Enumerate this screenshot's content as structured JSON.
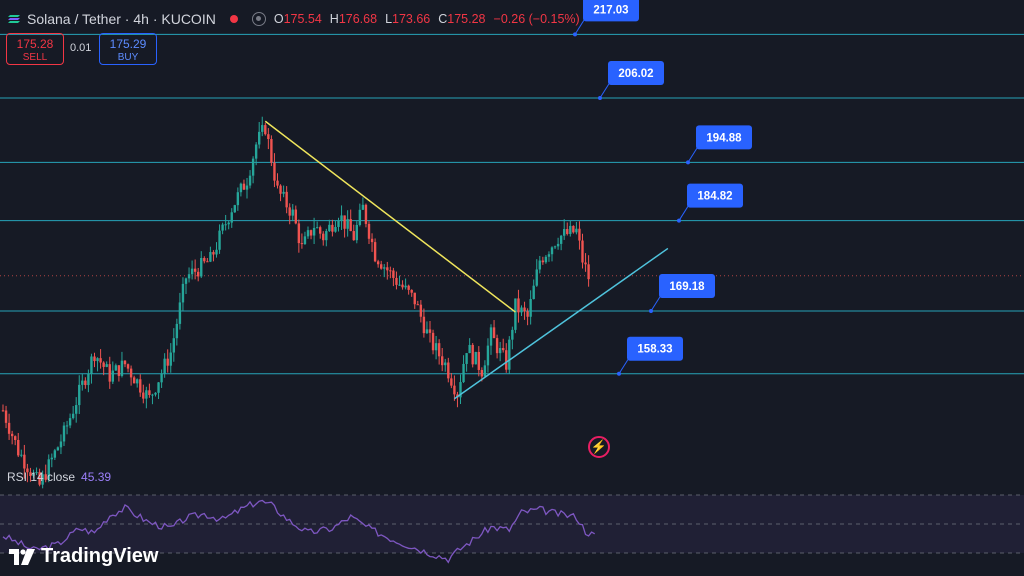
{
  "header": {
    "symbol": "Solana / Tether · 4h · KUCOIN",
    "ohlc": [
      {
        "key": "O",
        "value": "175.54"
      },
      {
        "key": "H",
        "value": "176.68"
      },
      {
        "key": "L",
        "value": "173.66"
      },
      {
        "key": "C",
        "value": "175.28"
      },
      {
        "key": "",
        "value": "−0.26 (−0.15%)"
      }
    ]
  },
  "trade": {
    "sell_price": "175.28",
    "sell_label": "SELL",
    "buy_price": "175.29",
    "buy_label": "BUY",
    "spread": "0.01"
  },
  "rsi": {
    "label": "RSI 14 close",
    "value": "45.39"
  },
  "brand": {
    "name": "TradingView"
  },
  "colors": {
    "up": "#26a69a",
    "down": "#ef5350",
    "hline": "#26a3b8",
    "trend_down": "#f0e65c",
    "trend_up": "#4fc3dc",
    "rsi": "#7e57c2",
    "label_bg": "#2962ff"
  },
  "chart_data": {
    "type": "candlestick",
    "series": [
      {
        "name": "SOL/USDT",
        "waypoints": [
          [
            0,
            152
          ],
          [
            5,
            145
          ],
          [
            12,
            139
          ],
          [
            20,
            148
          ],
          [
            30,
            162
          ],
          [
            35,
            158
          ],
          [
            40,
            160
          ],
          [
            48,
            154
          ],
          [
            55,
            162
          ],
          [
            60,
            175
          ],
          [
            68,
            178
          ],
          [
            75,
            187
          ],
          [
            80,
            192
          ],
          [
            83,
            198
          ],
          [
            86,
            201
          ],
          [
            90,
            190
          ],
          [
            95,
            186
          ],
          [
            98,
            180
          ],
          [
            102,
            184
          ],
          [
            105,
            182
          ],
          [
            110,
            186
          ],
          [
            115,
            182
          ],
          [
            118,
            187
          ],
          [
            122,
            179
          ],
          [
            128,
            175
          ],
          [
            135,
            171
          ],
          [
            140,
            164
          ],
          [
            145,
            160
          ],
          [
            149,
            155
          ],
          [
            152,
            163
          ],
          [
            157,
            159
          ],
          [
            160,
            165
          ],
          [
            165,
            160
          ],
          [
            168,
            170
          ],
          [
            172,
            168
          ],
          [
            176,
            178
          ],
          [
            182,
            182
          ],
          [
            188,
            183
          ],
          [
            190,
            178
          ],
          [
            192,
            175
          ]
        ]
      }
    ],
    "levels": [
      "217.03",
      "206.02",
      "194.88",
      "184.82",
      "169.18",
      "158.33"
    ],
    "level_values": [
      217.03,
      206.02,
      194.88,
      184.82,
      169.18,
      158.33
    ],
    "trendlines": [
      {
        "name": "descending resistance",
        "from": [
          86,
          202
        ],
        "to": [
          168,
          169
        ]
      },
      {
        "name": "ascending support",
        "from": [
          148,
          154
        ],
        "to": [
          218,
          180
        ]
      }
    ],
    "rsi_waypoints": [
      [
        0,
        42
      ],
      [
        10,
        32
      ],
      [
        18,
        36
      ],
      [
        25,
        47
      ],
      [
        30,
        44
      ],
      [
        35,
        56
      ],
      [
        40,
        61
      ],
      [
        48,
        51
      ],
      [
        55,
        47
      ],
      [
        60,
        54
      ],
      [
        66,
        57
      ],
      [
        72,
        53
      ],
      [
        78,
        60
      ],
      [
        84,
        66
      ],
      [
        88,
        63
      ],
      [
        94,
        52
      ],
      [
        100,
        44
      ],
      [
        108,
        47
      ],
      [
        114,
        55
      ],
      [
        120,
        47
      ],
      [
        126,
        41
      ],
      [
        132,
        36
      ],
      [
        140,
        30
      ],
      [
        146,
        26
      ],
      [
        150,
        33
      ],
      [
        156,
        42
      ],
      [
        160,
        48
      ],
      [
        166,
        46
      ],
      [
        170,
        58
      ],
      [
        176,
        60
      ],
      [
        182,
        57
      ],
      [
        188,
        55
      ],
      [
        191,
        45
      ],
      [
        194,
        42
      ]
    ],
    "rsi_bands": [
      70,
      50,
      30
    ]
  }
}
